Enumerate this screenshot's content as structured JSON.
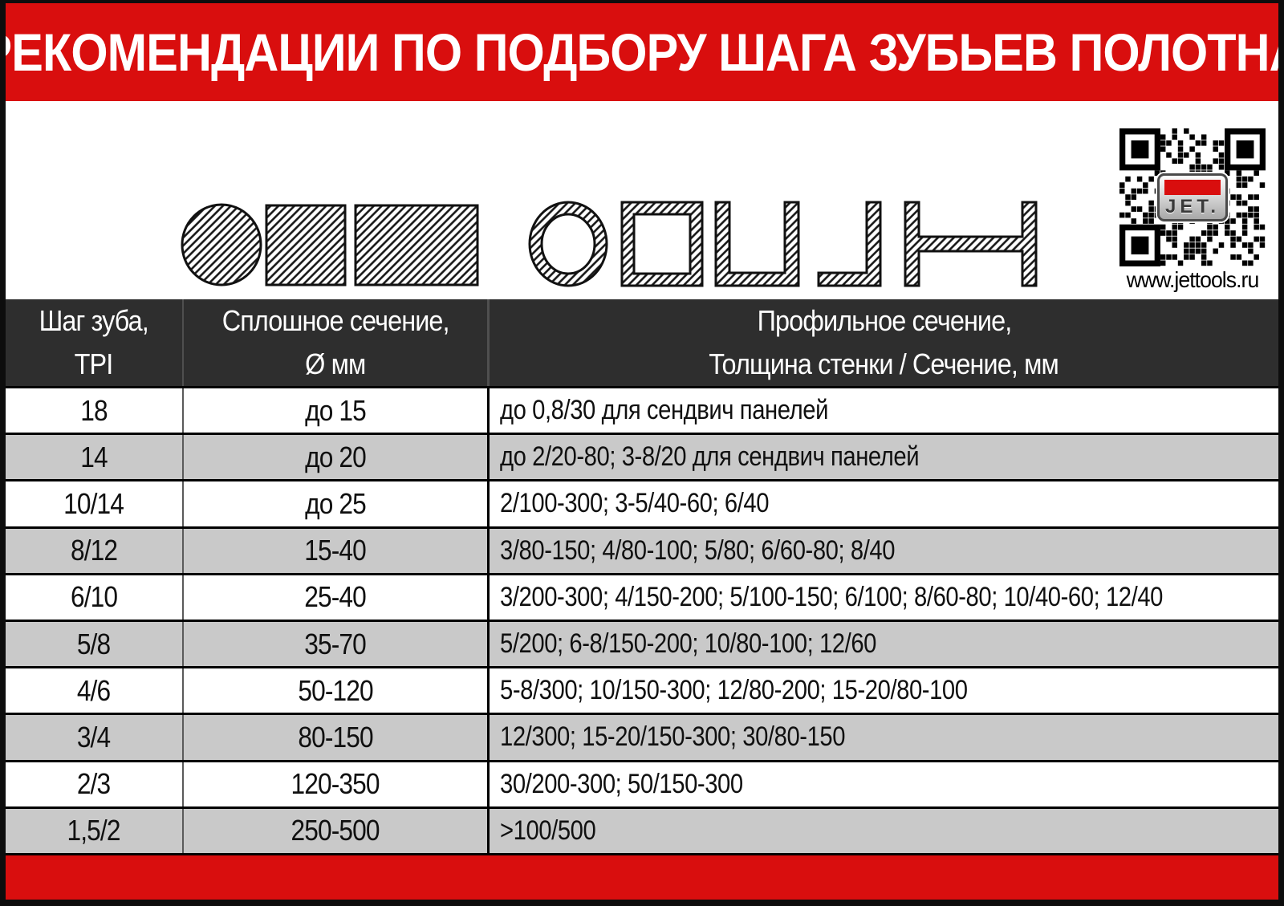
{
  "title": "РЕКОМЕНДАЦИИ ПО ПОДБОРУ ШАГА ЗУБЬЕВ ПОЛОТНА",
  "website": "www.jettools.ru",
  "logo_text": "JET.",
  "colors": {
    "banner_red": "#d90e0e",
    "header_bg": "#2e2e2e",
    "row_alt": "#c9c9c9",
    "text": "#101010"
  },
  "shape_icons": [
    "solid-round-bar",
    "solid-square-bar",
    "solid-flat-bar",
    "round-tube",
    "square-tube",
    "channel-profile",
    "angle-profile",
    "i-beam-profile"
  ],
  "table": {
    "headers": [
      {
        "line1": "Шаг зуба,",
        "line2": "TPI"
      },
      {
        "line1": "Сплошное сечение,",
        "line2": "Ø мм"
      },
      {
        "line1": "Профильное сечение,",
        "line2": "Толщина стенки / Сечение, мм"
      }
    ],
    "rows": [
      {
        "tpi": "18",
        "solid": "до 15",
        "profile": "до 0,8/30 для сендвич панелей"
      },
      {
        "tpi": "14",
        "solid": "до 20",
        "profile": "до 2/20-80; 3-8/20 для сендвич панелей"
      },
      {
        "tpi": "10/14",
        "solid": "до 25",
        "profile": "2/100-300; 3-5/40-60;  6/40"
      },
      {
        "tpi": "8/12",
        "solid": "15-40",
        "profile": "3/80-150; 4/80-100; 5/80; 6/60-80; 8/40"
      },
      {
        "tpi": "6/10",
        "solid": "25-40",
        "profile": "3/200-300; 4/150-200; 5/100-150; 6/100; 8/60-80; 10/40-60; 12/40"
      },
      {
        "tpi": "5/8",
        "solid": "35-70",
        "profile": "5/200; 6-8/150-200; 10/80-100; 12/60"
      },
      {
        "tpi": "4/6",
        "solid": "50-120",
        "profile": "5-8/300; 10/150-300; 12/80-200; 15-20/80-100"
      },
      {
        "tpi": "3/4",
        "solid": "80-150",
        "profile": "12/300; 15-20/150-300; 30/80-150"
      },
      {
        "tpi": "2/3",
        "solid": "120-350",
        "profile": "30/200-300; 50/150-300"
      },
      {
        "tpi": "1,5/2",
        "solid": "250-500",
        "profile": ">100/500"
      }
    ]
  }
}
